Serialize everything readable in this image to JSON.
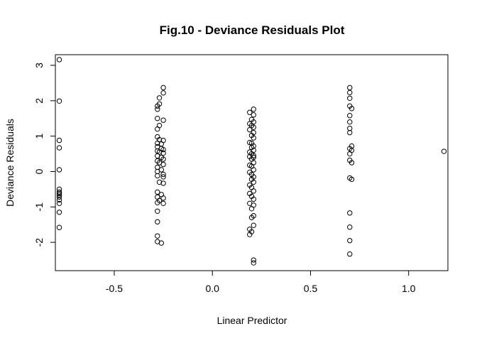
{
  "chart_data": {
    "type": "scatter",
    "title": "Fig.10 - Deviance Residuals Plot",
    "xlabel": "Linear Predictor",
    "ylabel": "Deviance Residuals",
    "xlim": [
      -0.8,
      1.2
    ],
    "ylim": [
      -2.8,
      3.3
    ],
    "xticks": [
      -0.5,
      0.0,
      0.5,
      1.0
    ],
    "xtick_labels": [
      "-0.5",
      "0.0",
      "0.5",
      "1.0"
    ],
    "yticks": [
      -2,
      -1,
      0,
      1,
      2,
      3
    ],
    "ytick_labels": [
      "-2",
      "-1",
      "0",
      "1",
      "2",
      "3"
    ],
    "grid": false,
    "point_style": "open-circle",
    "points": [
      [
        -0.78,
        3.16
      ],
      [
        -0.78,
        1.99
      ],
      [
        -0.78,
        0.88
      ],
      [
        -0.78,
        0.67
      ],
      [
        -0.78,
        0.05
      ],
      [
        -0.78,
        -0.5
      ],
      [
        -0.78,
        -0.58
      ],
      [
        -0.78,
        -0.62
      ],
      [
        -0.78,
        -0.66
      ],
      [
        -0.78,
        -0.72
      ],
      [
        -0.78,
        -0.8
      ],
      [
        -0.78,
        -0.9
      ],
      [
        -0.78,
        -1.15
      ],
      [
        -0.78,
        -1.58
      ],
      [
        -0.25,
        2.37
      ],
      [
        -0.25,
        2.22
      ],
      [
        -0.27,
        2.08
      ],
      [
        -0.27,
        1.91
      ],
      [
        -0.28,
        1.85
      ],
      [
        -0.28,
        1.76
      ],
      [
        -0.28,
        1.5
      ],
      [
        -0.27,
        1.3
      ],
      [
        -0.25,
        1.45
      ],
      [
        -0.28,
        1.2
      ],
      [
        -0.28,
        0.98
      ],
      [
        -0.27,
        0.9
      ],
      [
        -0.25,
        0.88
      ],
      [
        -0.28,
        0.8
      ],
      [
        -0.26,
        0.78
      ],
      [
        -0.28,
        0.7
      ],
      [
        -0.26,
        0.65
      ],
      [
        -0.25,
        0.62
      ],
      [
        -0.28,
        0.58
      ],
      [
        -0.27,
        0.55
      ],
      [
        -0.25,
        0.52
      ],
      [
        -0.28,
        0.44
      ],
      [
        -0.26,
        0.4
      ],
      [
        -0.25,
        0.35
      ],
      [
        -0.28,
        0.3
      ],
      [
        -0.27,
        0.25
      ],
      [
        -0.25,
        0.2
      ],
      [
        -0.28,
        0.12
      ],
      [
        -0.26,
        0.05
      ],
      [
        -0.28,
        0.0
      ],
      [
        -0.25,
        -0.08
      ],
      [
        -0.28,
        -0.12
      ],
      [
        -0.25,
        -0.15
      ],
      [
        -0.27,
        -0.3
      ],
      [
        -0.25,
        -0.33
      ],
      [
        -0.28,
        -0.58
      ],
      [
        -0.26,
        -0.65
      ],
      [
        -0.28,
        -0.72
      ],
      [
        -0.25,
        -0.75
      ],
      [
        -0.27,
        -0.82
      ],
      [
        -0.28,
        -0.88
      ],
      [
        -0.25,
        -0.9
      ],
      [
        -0.28,
        -1.12
      ],
      [
        -0.28,
        -1.42
      ],
      [
        -0.28,
        -1.82
      ],
      [
        -0.28,
        -1.98
      ],
      [
        -0.26,
        -2.02
      ],
      [
        0.21,
        1.76
      ],
      [
        0.19,
        1.67
      ],
      [
        0.21,
        1.6
      ],
      [
        0.2,
        1.47
      ],
      [
        0.21,
        1.4
      ],
      [
        0.19,
        1.35
      ],
      [
        0.2,
        1.3
      ],
      [
        0.21,
        1.25
      ],
      [
        0.19,
        1.18
      ],
      [
        0.21,
        1.1
      ],
      [
        0.2,
        1.02
      ],
      [
        0.21,
        0.95
      ],
      [
        0.19,
        0.82
      ],
      [
        0.2,
        0.8
      ],
      [
        0.21,
        0.72
      ],
      [
        0.2,
        0.68
      ],
      [
        0.21,
        0.6
      ],
      [
        0.19,
        0.55
      ],
      [
        0.2,
        0.5
      ],
      [
        0.21,
        0.45
      ],
      [
        0.19,
        0.42
      ],
      [
        0.21,
        0.4
      ],
      [
        0.2,
        0.35
      ],
      [
        0.21,
        0.25
      ],
      [
        0.19,
        0.18
      ],
      [
        0.2,
        0.15
      ],
      [
        0.21,
        0.05
      ],
      [
        0.19,
        -0.02
      ],
      [
        0.2,
        -0.08
      ],
      [
        0.21,
        -0.15
      ],
      [
        0.2,
        -0.22
      ],
      [
        0.21,
        -0.3
      ],
      [
        0.19,
        -0.38
      ],
      [
        0.2,
        -0.45
      ],
      [
        0.21,
        -0.55
      ],
      [
        0.19,
        -0.62
      ],
      [
        0.2,
        -0.7
      ],
      [
        0.21,
        -0.78
      ],
      [
        0.19,
        -0.9
      ],
      [
        0.21,
        -0.95
      ],
      [
        0.2,
        -1.05
      ],
      [
        0.21,
        -1.25
      ],
      [
        0.2,
        -1.3
      ],
      [
        0.21,
        -1.52
      ],
      [
        0.19,
        -1.63
      ],
      [
        0.2,
        -1.7
      ],
      [
        0.19,
        -1.78
      ],
      [
        0.21,
        -2.5
      ],
      [
        0.21,
        -2.58
      ],
      [
        0.7,
        2.37
      ],
      [
        0.7,
        2.23
      ],
      [
        0.7,
        2.07
      ],
      [
        0.7,
        1.85
      ],
      [
        0.71,
        1.78
      ],
      [
        0.7,
        1.58
      ],
      [
        0.7,
        1.4
      ],
      [
        0.7,
        1.22
      ],
      [
        0.7,
        1.1
      ],
      [
        0.71,
        0.72
      ],
      [
        0.7,
        0.65
      ],
      [
        0.71,
        0.6
      ],
      [
        0.7,
        0.5
      ],
      [
        0.7,
        0.32
      ],
      [
        0.71,
        0.25
      ],
      [
        0.7,
        -0.18
      ],
      [
        0.71,
        -0.22
      ],
      [
        0.7,
        -1.17
      ],
      [
        0.7,
        -1.57
      ],
      [
        0.7,
        -1.95
      ],
      [
        0.7,
        -2.33
      ],
      [
        1.18,
        0.57
      ]
    ]
  }
}
